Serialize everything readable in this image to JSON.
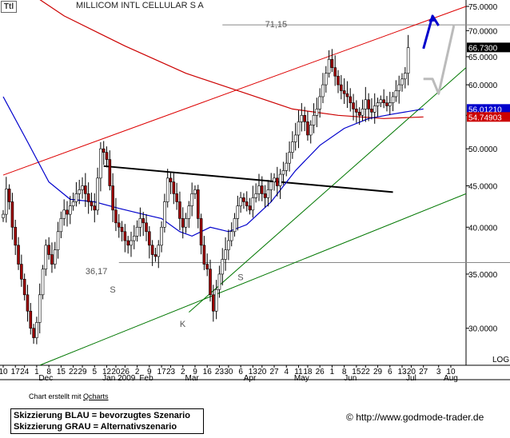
{
  "ticker_tag": "Ttl",
  "title": "MILLICOM INTL CELLULAR S A",
  "credit_prefix": "Chart erstellt mit ",
  "credit_link": "Qcharts",
  "legend": {
    "blue": "Skizzierung BLAU = bevorzugtes Szenario",
    "grey": "Skizzierung GRAU = Alternativszenario"
  },
  "url": "http://www.godmode-trader.de",
  "copyright_symbol": "©",
  "colors": {
    "up_candle": "#ffffff",
    "down_candle": "#a00000",
    "wick": "#000000",
    "ma_long": "#cc0000",
    "ma_short": "#0000cc",
    "trend_green": "#007700",
    "trend_red": "#dd0000",
    "neckline": "#000000",
    "blue_scenario": "#0000cc",
    "grey_scenario": "#bbbbbb",
    "badge_last": "#000000",
    "badge_blue": "#0000cc",
    "badge_red": "#cc0000"
  },
  "chart_data": {
    "type": "candlestick",
    "y_scale": "log",
    "ylim": [
      27,
      75
    ],
    "grid": false,
    "y_ticks": [
      "75.0000",
      "70.0000",
      "65.0000",
      "60.0000",
      "55.0000",
      "50.0000",
      "45.0000",
      "40.0000",
      "35.0000",
      "30.0000"
    ],
    "y_tick_values": [
      75,
      70,
      65,
      60,
      55,
      50,
      45,
      40,
      35,
      30
    ],
    "scale_label": "LOG",
    "x_ticks": [
      {
        "i": 0,
        "label": "10"
      },
      {
        "i": 4,
        "label": "17"
      },
      {
        "i": 7,
        "label": "24"
      },
      {
        "i": 11,
        "label": "1"
      },
      {
        "i": 15,
        "label": "8"
      },
      {
        "i": 19,
        "label": "15"
      },
      {
        "i": 23,
        "label": "22"
      },
      {
        "i": 26,
        "label": "29"
      },
      {
        "i": 30,
        "label": "5"
      },
      {
        "i": 34,
        "label": "12"
      },
      {
        "i": 37,
        "label": "20"
      },
      {
        "i": 40,
        "label": "26"
      },
      {
        "i": 44,
        "label": "2"
      },
      {
        "i": 48,
        "label": "9"
      },
      {
        "i": 52,
        "label": "17"
      },
      {
        "i": 55,
        "label": "23"
      },
      {
        "i": 59,
        "label": "2"
      },
      {
        "i": 63,
        "label": "9"
      },
      {
        "i": 67,
        "label": "16"
      },
      {
        "i": 71,
        "label": "23"
      },
      {
        "i": 74,
        "label": "30"
      },
      {
        "i": 78,
        "label": "6"
      },
      {
        "i": 82,
        "label": "13"
      },
      {
        "i": 85,
        "label": "20"
      },
      {
        "i": 89,
        "label": "27"
      },
      {
        "i": 93,
        "label": "4"
      },
      {
        "i": 97,
        "label": "11"
      },
      {
        "i": 100,
        "label": "18"
      },
      {
        "i": 104,
        "label": "26"
      },
      {
        "i": 108,
        "label": "1"
      },
      {
        "i": 112,
        "label": "8"
      },
      {
        "i": 116,
        "label": "15"
      },
      {
        "i": 119,
        "label": "22"
      },
      {
        "i": 123,
        "label": "29"
      },
      {
        "i": 127,
        "label": "6"
      },
      {
        "i": 131,
        "label": "13"
      },
      {
        "i": 134,
        "label": "20"
      },
      {
        "i": 138,
        "label": "27"
      },
      {
        "i": 143,
        "label": "3"
      },
      {
        "i": 147,
        "label": "10"
      }
    ],
    "month_labels": [
      {
        "i": 14,
        "label": "Dec"
      },
      {
        "i": 38,
        "label": "Jan 2009"
      },
      {
        "i": 47,
        "label": "Feb"
      },
      {
        "i": 62,
        "label": "Mar"
      },
      {
        "i": 81,
        "label": "Apr"
      },
      {
        "i": 98,
        "label": "May"
      },
      {
        "i": 114,
        "label": "Jun"
      },
      {
        "i": 134,
        "label": "Jul"
      },
      {
        "i": 147,
        "label": "Aug"
      }
    ],
    "annotations": [
      {
        "text": "71,15",
        "i": 86,
        "y": 70.7
      },
      {
        "text": "36,17",
        "i": 27,
        "y": 35.0
      },
      {
        "text": "S",
        "i": 35,
        "y": 33.2
      },
      {
        "text": "K",
        "i": 58,
        "y": 30.1
      },
      {
        "text": "S",
        "i": 77,
        "y": 34.4
      }
    ],
    "price_badges": [
      {
        "label": "66.7300",
        "value": 66.73,
        "color": "#000000"
      },
      {
        "label": "56.01210",
        "value": 56.01,
        "color": "#0000cc"
      },
      {
        "label": "54.74903",
        "value": 54.75,
        "color": "#cc0000"
      }
    ],
    "horizontal_levels": [
      {
        "value": 71.15,
        "from_i": 72,
        "to_i": 152
      },
      {
        "value": 36.17,
        "from_i": 38,
        "to_i": 152
      }
    ],
    "close_series": [
      41.5,
      44.6,
      43.0,
      40.0,
      38.0,
      36.0,
      34.5,
      33.0,
      31.5,
      30.0,
      29.2,
      30.5,
      33.0,
      35.5,
      38.0,
      37.0,
      36.0,
      37.5,
      39.5,
      41.0,
      42.0,
      41.5,
      42.5,
      43.0,
      44.0,
      44.5,
      45.0,
      44.0,
      43.0,
      42.5,
      42.0,
      46.0,
      50.0,
      49.5,
      48.5,
      45.0,
      42.0,
      40.5,
      40.0,
      39.5,
      38.5,
      38.0,
      38.5,
      39.0,
      40.0,
      41.0,
      40.5,
      39.5,
      38.0,
      37.0,
      36.8,
      38.0,
      40.0,
      43.0,
      46.0,
      45.5,
      44.0,
      43.0,
      41.0,
      40.0,
      41.0,
      42.5,
      44.0,
      44.5,
      41.0,
      38.0,
      36.0,
      35.5,
      33.0,
      31.5,
      33.5,
      35.0,
      36.5,
      37.5,
      38.5,
      39.5,
      41.0,
      42.5,
      43.5,
      43.0,
      42.5,
      42.0,
      43.5,
      44.0,
      45.0,
      44.0,
      43.5,
      44.5,
      45.5,
      46.0,
      45.0,
      46.5,
      47.0,
      48.0,
      49.5,
      51.0,
      52.0,
      54.0,
      55.0,
      54.0,
      52.0,
      53.5,
      55.0,
      56.0,
      58.0,
      60.0,
      62.0,
      64.5,
      63.0,
      61.5,
      60.0,
      59.0,
      58.5,
      58.0,
      57.0,
      56.0,
      55.5,
      55.0,
      56.0,
      57.5,
      56.0,
      55.5,
      56.5,
      57.0,
      57.5,
      57.0,
      56.5,
      57.0,
      58.0,
      59.0,
      60.0,
      61.0,
      62.0,
      66.7
    ],
    "ma_long": [
      [
        0,
        82.0
      ],
      [
        20,
        73.0
      ],
      [
        40,
        67.0
      ],
      [
        60,
        62.0
      ],
      [
        80,
        58.5
      ],
      [
        95,
        56.0
      ],
      [
        110,
        55.0
      ],
      [
        125,
        54.5
      ],
      [
        138,
        54.75
      ]
    ],
    "ma_short": [
      [
        0,
        58.0
      ],
      [
        8,
        51.0
      ],
      [
        15,
        45.5
      ],
      [
        22,
        43.3
      ],
      [
        30,
        43.0
      ],
      [
        38,
        42.2
      ],
      [
        46,
        41.5
      ],
      [
        52,
        41.0
      ],
      [
        58,
        39.5
      ],
      [
        62,
        39.0
      ],
      [
        68,
        40.0
      ],
      [
        74,
        39.5
      ],
      [
        80,
        40.3
      ],
      [
        88,
        43.0
      ],
      [
        96,
        47.0
      ],
      [
        104,
        50.5
      ],
      [
        112,
        53.0
      ],
      [
        120,
        54.5
      ],
      [
        128,
        55.2
      ],
      [
        138,
        56.01
      ]
    ],
    "trend_lines": [
      {
        "name": "red",
        "from": [
          0,
          46.4
        ],
        "to": [
          152,
          75.0
        ]
      },
      {
        "name": "green-lower",
        "from": [
          12,
          27.0
        ],
        "to": [
          152,
          44.0
        ]
      },
      {
        "name": "green-upper",
        "from": [
          61,
          31.4
        ],
        "to": [
          152,
          63.0
        ]
      },
      {
        "name": "neckline",
        "from": [
          33,
          47.6
        ],
        "to": [
          128,
          44.2
        ]
      }
    ],
    "scenarios": {
      "blue": [
        [
          138,
          66.5
        ],
        [
          141,
          73.0
        ],
        [
          143,
          71.0
        ]
      ],
      "grey": [
        [
          138,
          61.0
        ],
        [
          141,
          61.0
        ],
        [
          143,
          58.5
        ],
        [
          148,
          71.0
        ]
      ]
    }
  }
}
